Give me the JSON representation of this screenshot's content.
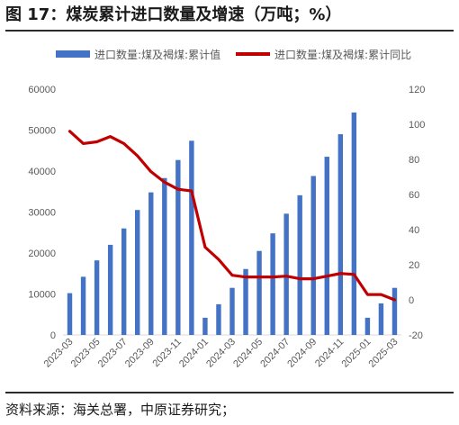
{
  "figure": {
    "title": "图 17：煤炭累计进口数量及增速（万吨；%）",
    "source": "资料来源：海关总署，中原证券研究；"
  },
  "colors": {
    "bars": "#4472c4",
    "line": "#c00000",
    "axis": "#d9d9d9",
    "text": "#595959"
  },
  "chart_data": {
    "type": "bar+line",
    "categories": [
      "2023-03",
      "2023-04",
      "2023-05",
      "2023-06",
      "2023-07",
      "2023-08",
      "2023-09",
      "2023-10",
      "2023-11",
      "2023-12",
      "2024-01",
      "2024-02",
      "2024-03",
      "2024-04",
      "2024-05",
      "2024-06",
      "2024-07",
      "2024-08",
      "2024-09",
      "2024-10",
      "2024-11",
      "2024-12",
      "2025-01",
      "2025-02",
      "2025-03"
    ],
    "x_tick_labels": [
      "2023-03",
      "2023-05",
      "2023-07",
      "2023-09",
      "2023-11",
      "2024-01",
      "2024-03",
      "2024-05",
      "2024-07",
      "2024-09",
      "2024-11",
      "2025-01",
      "2025-03"
    ],
    "series": [
      {
        "name": "进口数量:煤及褐煤:累计值",
        "type": "bar",
        "axis": "left",
        "values": [
          10200,
          14200,
          18200,
          22000,
          26000,
          30500,
          34800,
          38300,
          42700,
          47400,
          4200,
          7500,
          11500,
          16100,
          20500,
          24800,
          29600,
          34100,
          38800,
          43500,
          49000,
          54300,
          4200,
          7700,
          11500
        ]
      },
      {
        "name": "进口数量:煤及褐煤:累计同比",
        "type": "line",
        "axis": "right",
        "values": [
          96,
          89,
          90,
          93,
          89,
          82,
          73,
          67,
          63,
          62,
          30,
          23,
          14,
          13,
          13,
          13,
          13.5,
          12,
          12,
          13.5,
          15,
          14.5,
          3,
          3,
          0
        ]
      }
    ],
    "y_left": {
      "min": 0,
      "max": 60000,
      "ticks": [
        0,
        10000,
        20000,
        30000,
        40000,
        50000,
        60000
      ]
    },
    "y_right": {
      "min": -20,
      "max": 120,
      "ticks": [
        -20,
        0,
        20,
        40,
        60,
        80,
        100,
        120
      ]
    },
    "legend_position": "top",
    "grid": false
  }
}
